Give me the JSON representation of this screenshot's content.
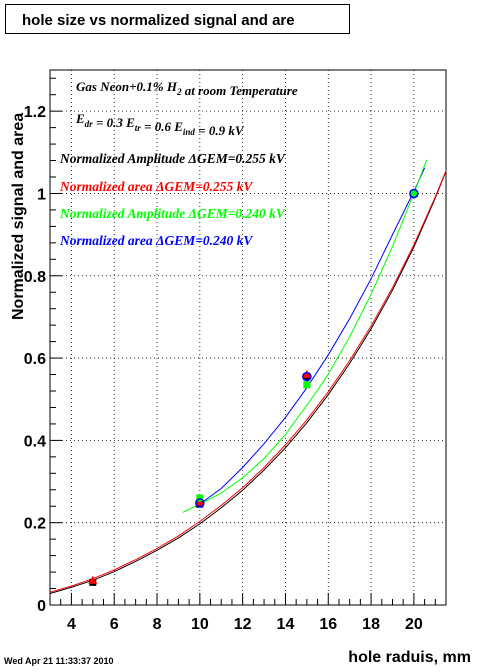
{
  "title": "hole size vs normalized signal and are",
  "timestamp": "Wed Apr 21 11:33:37 2010",
  "chart_data": {
    "type": "scatter",
    "xlabel": "hole raduis, mm",
    "ylabel": "Normalized signal and area",
    "xlim": [
      3,
      21.5
    ],
    "ylim": [
      0,
      1.3
    ],
    "x_ticks": [
      4,
      6,
      8,
      10,
      12,
      14,
      16,
      18,
      20
    ],
    "y_ticks": [
      0,
      0.2,
      0.4,
      0.6,
      0.8,
      1,
      1.2
    ],
    "x_tick_labels": [
      "4",
      "6",
      "8",
      "10",
      "12",
      "14",
      "16",
      "18",
      "20"
    ],
    "y_tick_labels": [
      "0",
      "0.2",
      "0.4",
      "0.6",
      "0.8",
      "1",
      "1.2"
    ],
    "grid": true,
    "annotations": [
      {
        "id": "gas",
        "segments": [
          {
            "t": "Gas Neon+0.1% H"
          },
          {
            "t": "2",
            "sub": true
          },
          {
            "t": " at room Temperature"
          }
        ]
      },
      {
        "id": "fields",
        "segments": [
          {
            "t": "E"
          },
          {
            "t": "dr",
            "sub": true
          },
          {
            "t": " = 0.3 E"
          },
          {
            "t": "tr",
            "sub": true
          },
          {
            "t": " = 0.6 E"
          },
          {
            "t": "ind",
            "sub": true
          },
          {
            "t": " = 0.9 kV"
          }
        ]
      }
    ],
    "series": [
      {
        "name": "Normalized Amplitude ΔGEM=0.255 kV",
        "color": "#000000",
        "marker": "square",
        "x": [
          5,
          10,
          15,
          20
        ],
        "y": [
          0.055,
          0.245,
          0.555,
          1.0
        ]
      },
      {
        "name": "Normalized area ΔGEM=0.255 kV",
        "color": "#ff0000",
        "marker": "triangle",
        "x": [
          5,
          10,
          15,
          20
        ],
        "y": [
          0.06,
          0.25,
          0.56,
          1.0
        ]
      },
      {
        "name": "Normalized Amplitude ΔGEM=0.240 kV",
        "color": "#00ff00",
        "marker": "square",
        "x": [
          10,
          15,
          20
        ],
        "y": [
          0.26,
          0.535,
          1.0
        ]
      },
      {
        "name": "Normalized area ΔGEM=0.240 kV",
        "color": "#0000ff",
        "marker": "circle",
        "x": [
          10,
          15,
          20
        ],
        "y": [
          0.248,
          0.555,
          1.0
        ]
      }
    ],
    "fits": [
      {
        "color": "#000000",
        "x": [
          3,
          4,
          5,
          6,
          7,
          8,
          9,
          10,
          11,
          12,
          13,
          14,
          15,
          16,
          17,
          18,
          19,
          20,
          21,
          21.5
        ],
        "y": [
          0.028,
          0.043,
          0.06,
          0.081,
          0.106,
          0.133,
          0.163,
          0.197,
          0.236,
          0.279,
          0.328,
          0.382,
          0.443,
          0.511,
          0.587,
          0.671,
          0.765,
          0.87,
          0.989,
          1.054
        ]
      },
      {
        "color": "#ff0000",
        "x": [
          3,
          4,
          5,
          6,
          7,
          8,
          9,
          10,
          11,
          12,
          13,
          14,
          15,
          16,
          17,
          18,
          19,
          20,
          21,
          21.5
        ],
        "y": [
          0.031,
          0.046,
          0.064,
          0.085,
          0.11,
          0.137,
          0.168,
          0.203,
          0.242,
          0.285,
          0.334,
          0.389,
          0.45,
          0.518,
          0.594,
          0.678,
          0.771,
          0.875,
          0.992,
          1.055
        ]
      },
      {
        "color": "#0000ff",
        "x": [
          9.8,
          11,
          12,
          13,
          14,
          15,
          16,
          17,
          18,
          19,
          20,
          20.5
        ],
        "y": [
          0.238,
          0.283,
          0.334,
          0.392,
          0.456,
          0.528,
          0.608,
          0.696,
          0.793,
          0.9,
          1.005,
          1.062
        ]
      },
      {
        "color": "#00ff00",
        "x": [
          9.2,
          10,
          11,
          12,
          13,
          14,
          15,
          15.5,
          16,
          17,
          18,
          19,
          20,
          20.6
        ],
        "y": [
          0.225,
          0.245,
          0.272,
          0.309,
          0.356,
          0.414,
          0.486,
          0.522,
          0.561,
          0.652,
          0.755,
          0.871,
          1.0,
          1.082
        ]
      }
    ]
  }
}
